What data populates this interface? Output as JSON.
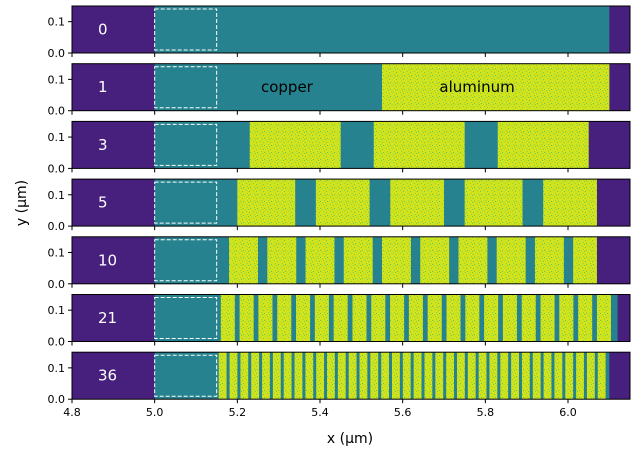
{
  "chart_data": {
    "type": "heatmap",
    "xlabel": "x (μm)",
    "ylabel": "y (μm)",
    "xlim": [
      4.8,
      6.15
    ],
    "ylim": [
      0.0,
      0.15
    ],
    "x_ticks": [
      "4.8",
      "5.0",
      "5.2",
      "5.4",
      "5.6",
      "5.8",
      "6.0"
    ],
    "y_ticks": [
      "0.0",
      "0.1"
    ],
    "annotations": [
      "copper",
      "aluminum"
    ],
    "colors": {
      "background": "#46207c",
      "copper": "#26828e",
      "aluminum": "#d2e21b",
      "aluminum_speckle": "#86d549",
      "dashed_box": "#ffffff"
    },
    "dashed_box_x": [
      5.0,
      5.15
    ],
    "panels": [
      {
        "label": "0",
        "copper_from": 5.0,
        "aluminum_blocks": [],
        "end": 6.1
      },
      {
        "label": "1",
        "copper_from": 5.0,
        "aluminum_blocks": [
          [
            5.55,
            6.1
          ]
        ],
        "end": 6.1
      },
      {
        "label": "3",
        "copper_from": 5.0,
        "aluminum_blocks": [
          [
            5.23,
            5.45
          ],
          [
            5.53,
            5.75
          ],
          [
            5.83,
            6.05
          ]
        ],
        "end": 6.05
      },
      {
        "label": "5",
        "copper_from": 5.0,
        "aluminum_blocks": [
          [
            5.2,
            5.34
          ],
          [
            5.39,
            5.52
          ],
          [
            5.57,
            5.7
          ],
          [
            5.75,
            5.89
          ],
          [
            5.94,
            6.07
          ]
        ],
        "end": 6.07
      },
      {
        "label": "10",
        "copper_from": 5.0,
        "count": 10,
        "period": 0.0925,
        "al_width": 0.07,
        "start": 5.18,
        "end": 6.07
      },
      {
        "label": "21",
        "copper_from": 5.0,
        "count": 21,
        "period": 0.0455,
        "al_width": 0.034,
        "start": 5.16,
        "end": 6.12
      },
      {
        "label": "36",
        "copper_from": 5.0,
        "count": 36,
        "period": 0.0262,
        "al_width": 0.019,
        "start": 5.155,
        "end": 6.1
      }
    ]
  }
}
